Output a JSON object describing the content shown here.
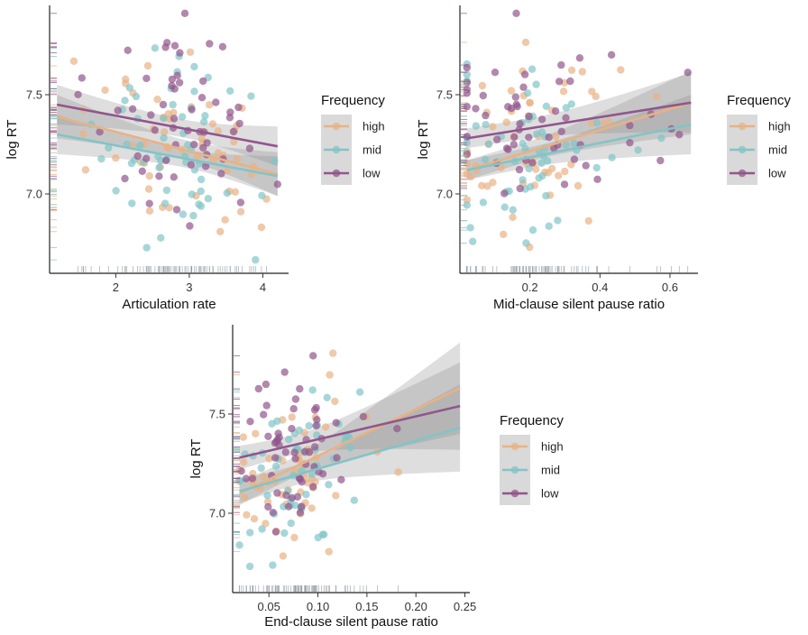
{
  "figure_title": "",
  "chart_data": [
    {
      "type": "scatter",
      "title": "",
      "xlabel": "Articulation rate",
      "ylabel": "log RT",
      "xlim": [
        1.1,
        4.35
      ],
      "ylim": [
        6.6,
        7.95
      ],
      "xticks": [
        2,
        3,
        4
      ],
      "xtick_labels": [
        "2",
        "3",
        "4"
      ],
      "yticks": [
        7.0,
        7.5
      ],
      "ytick_labels": [
        "7.0",
        "7.5"
      ],
      "x_range_data": [
        1.2,
        4.2
      ],
      "x_center": 2.9,
      "x_sd": 0.65,
      "legend": {
        "title": "Frequency",
        "placement": "right"
      },
      "series": [
        {
          "name": "high",
          "color": "#e8b284",
          "fit": {
            "x": [
              1.2,
              4.2
            ],
            "y": [
              7.39,
              7.1
            ]
          },
          "ci": [
            0.11,
            0.05,
            0.11
          ]
        },
        {
          "name": "mid",
          "color": "#82c4c7",
          "fit": {
            "x": [
              1.2,
              4.2
            ],
            "y": [
              7.3,
              7.09
            ]
          },
          "ci": [
            0.1,
            0.045,
            0.1
          ]
        },
        {
          "name": "low",
          "color": "#91568c",
          "fit": {
            "x": [
              1.2,
              4.2
            ],
            "y": [
              7.45,
              7.24
            ]
          },
          "ci": [
            0.1,
            0.045,
            0.1
          ]
        }
      ]
    },
    {
      "type": "scatter",
      "title": "",
      "xlabel": "Mid-clause silent pause ratio",
      "ylabel": "log RT",
      "xlim": [
        0.0,
        0.68
      ],
      "ylim": [
        6.6,
        7.95
      ],
      "xticks": [
        0.2,
        0.4,
        0.6
      ],
      "xtick_labels": [
        "0.2",
        "0.4",
        "0.6"
      ],
      "yticks": [
        7.0,
        7.5
      ],
      "ytick_labels": [
        "7.0",
        "7.5"
      ],
      "x_range_data": [
        0.02,
        0.66
      ],
      "x_center": 0.18,
      "x_sd": 0.12,
      "legend": {
        "title": "Frequency",
        "placement": "right"
      },
      "series": [
        {
          "name": "high",
          "color": "#e8b284",
          "fit": {
            "x": [
              0.02,
              0.66
            ],
            "y": [
              7.12,
              7.46
            ]
          },
          "ci": [
            0.05,
            0.05,
            0.16
          ]
        },
        {
          "name": "mid",
          "color": "#82c4c7",
          "fit": {
            "x": [
              0.02,
              0.66
            ],
            "y": [
              7.12,
              7.35
            ]
          },
          "ci": [
            0.05,
            0.05,
            0.15
          ]
        },
        {
          "name": "low",
          "color": "#91568c",
          "fit": {
            "x": [
              0.02,
              0.66
            ],
            "y": [
              7.28,
              7.46
            ]
          },
          "ci": [
            0.05,
            0.05,
            0.15
          ]
        }
      ]
    },
    {
      "type": "scatter",
      "title": "",
      "xlabel": "End-clause silent pause ratio",
      "ylabel": "log RT",
      "xlim": [
        0.013,
        0.255
      ],
      "ylim": [
        6.6,
        7.95
      ],
      "xticks": [
        0.05,
        0.1,
        0.15,
        0.2,
        0.25
      ],
      "xtick_labels": [
        "0.05",
        "0.10",
        "0.15",
        "0.20",
        "0.25"
      ],
      "yticks": [
        7.0,
        7.5
      ],
      "ytick_labels": [
        "7.0",
        "7.5"
      ],
      "x_range_data": [
        0.02,
        0.245
      ],
      "x_center": 0.075,
      "x_sd": 0.028,
      "legend": {
        "title": "Frequency",
        "placement": "right"
      },
      "series": [
        {
          "name": "high",
          "color": "#e8b284",
          "fit": {
            "x": [
              0.02,
              0.245
            ],
            "y": [
              7.1,
              7.63
            ]
          },
          "ci": [
            0.06,
            0.05,
            0.23
          ]
        },
        {
          "name": "mid",
          "color": "#82c4c7",
          "fit": {
            "x": [
              0.02,
              0.245
            ],
            "y": [
              7.11,
              7.43
            ]
          },
          "ci": [
            0.06,
            0.05,
            0.22
          ]
        },
        {
          "name": "low",
          "color": "#91568c",
          "fit": {
            "x": [
              0.02,
              0.245
            ],
            "y": [
              7.28,
              7.54
            ]
          },
          "ci": [
            0.06,
            0.05,
            0.22
          ]
        }
      ]
    }
  ]
}
